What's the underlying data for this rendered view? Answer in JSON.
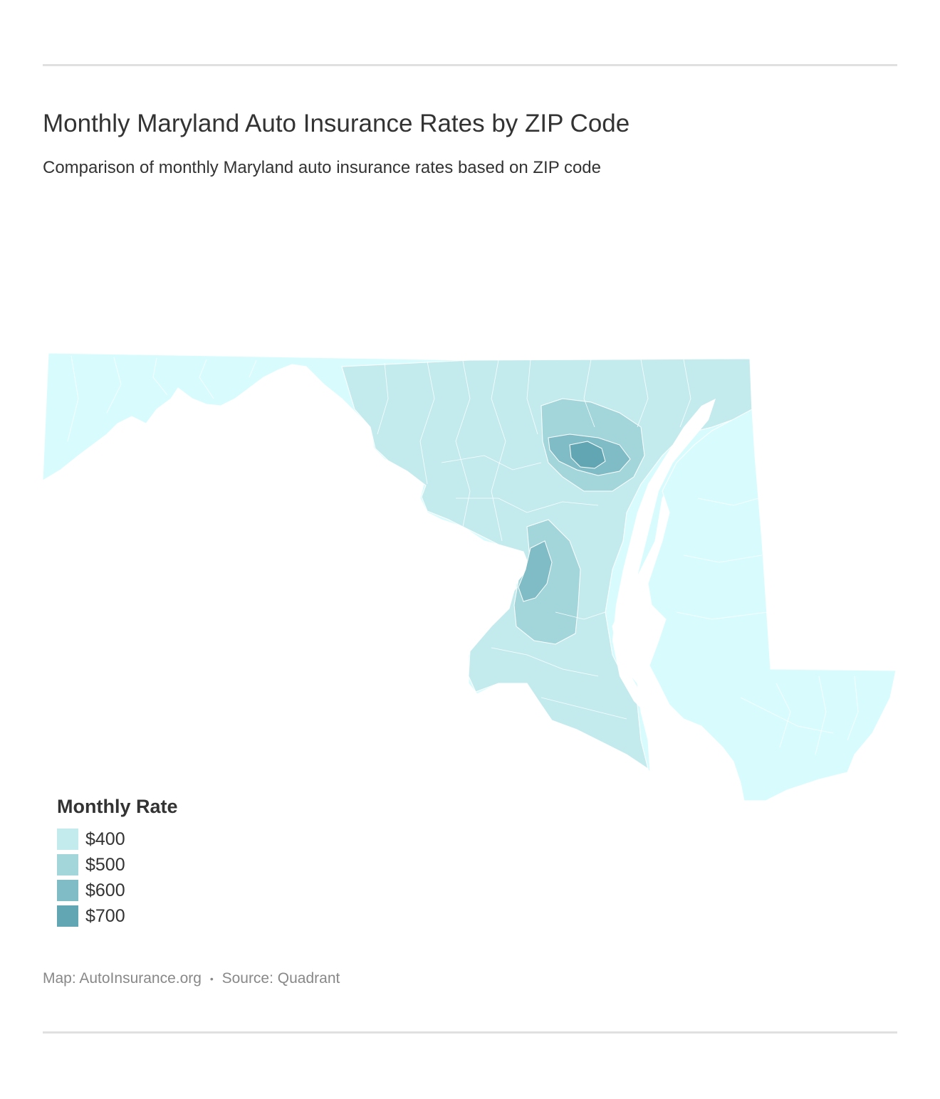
{
  "title": "Monthly Maryland Auto Insurance Rates by ZIP Code",
  "subtitle": "Comparison of monthly Maryland auto insurance rates based on ZIP code",
  "legend": {
    "title": "Monthly Rate",
    "items": [
      {
        "label": "$400",
        "color": "#c3ebee"
      },
      {
        "label": "$500",
        "color": "#a3d6da"
      },
      {
        "label": "$600",
        "color": "#80bcc6"
      },
      {
        "label": "$700",
        "color": "#62a6b4"
      }
    ]
  },
  "map_colors": {
    "base": "#d8fcfd",
    "tier400": "#c3ebee",
    "tier500": "#a3d6da",
    "tier600": "#80bcc6",
    "tier700": "#62a6b4",
    "boundary": "#ffffff"
  },
  "footer": {
    "map_credit": "Map: AutoInsurance.org",
    "separator": "•",
    "source": "Source: Quadrant"
  }
}
